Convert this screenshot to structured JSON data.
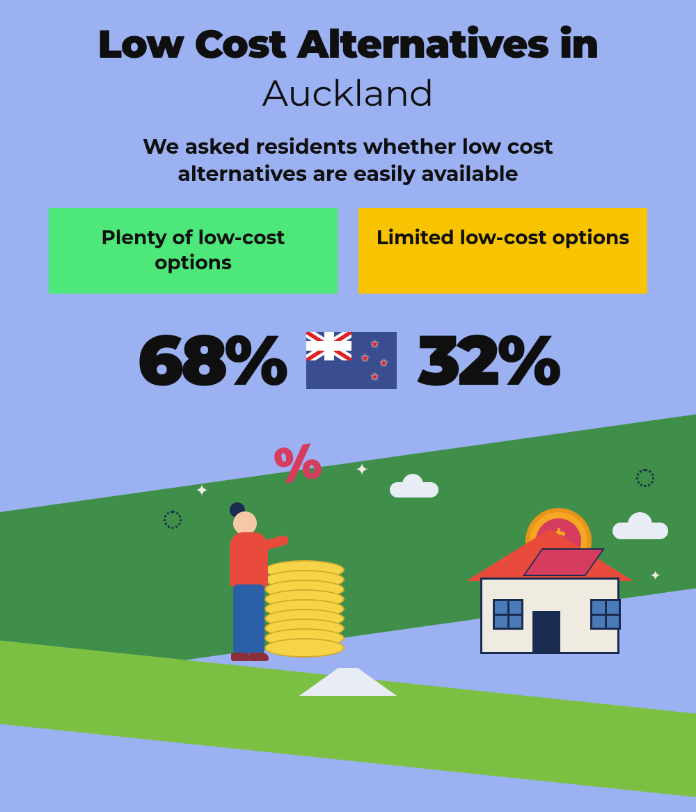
{
  "title": "Low Cost Alternatives in",
  "city": "Auckland",
  "subtitle": "We asked residents whether low cost alternatives are easily available",
  "options": {
    "plenty": {
      "label": "Plenty of low-cost options",
      "value": "68%",
      "bg_color": "#4ee87a"
    },
    "limited": {
      "label": "Limited low-cost options",
      "value": "32%",
      "bg_color": "#f8c300"
    }
  },
  "flag": {
    "country": "New Zealand",
    "bg_color": "#3a4e8f"
  },
  "colors": {
    "background": "#9bb1f2",
    "text": "#0f0f0f",
    "title_fontsize": 56,
    "city_fontsize": 52,
    "subtitle_fontsize": 30,
    "stat_fontsize": 100,
    "card_fontsize": 28
  },
  "illustration": {
    "percent_symbol": "%",
    "percent_color": "#d63c5e",
    "dollar_symbol": "$",
    "coin_color": "#f5d547",
    "coin_border": "#d4a82e",
    "coin_count": 9,
    "dollar_coin_outer": "#f5a623",
    "dollar_coin_inner": "#d63c5e",
    "person_shirt": "#e84b3c",
    "person_pants": "#2b5fa8",
    "house_wall": "#f0ebe0",
    "house_roof": "#e84b3c",
    "house_outline": "#1a2b50",
    "hill_back": "#3f8f4a",
    "hill_front": "#7bc043",
    "cloud_color": "#e8edf5"
  }
}
